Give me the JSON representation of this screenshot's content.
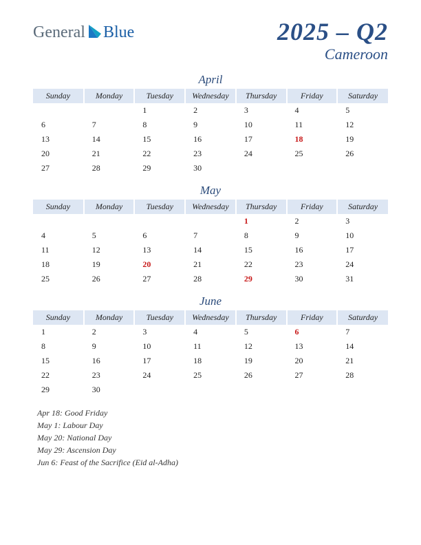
{
  "logo": {
    "part1": "General",
    "part2": "Blue"
  },
  "title": {
    "main": "2025 – Q2",
    "sub": "Cameroon"
  },
  "colors": {
    "header_bg": "#dde6f3",
    "accent": "#2a4f86",
    "holiday": "#c71818",
    "page_bg": "#ffffff"
  },
  "weekdays": [
    "Sunday",
    "Monday",
    "Tuesday",
    "Wednesday",
    "Thursday",
    "Friday",
    "Saturday"
  ],
  "months": [
    {
      "name": "April",
      "weeks": [
        [
          "",
          "",
          "1",
          "2",
          "3",
          "4",
          "5"
        ],
        [
          "6",
          "7",
          "8",
          "9",
          "10",
          "11",
          "12"
        ],
        [
          "13",
          "14",
          "15",
          "16",
          "17",
          "18",
          "19"
        ],
        [
          "20",
          "21",
          "22",
          "23",
          "24",
          "25",
          "26"
        ],
        [
          "27",
          "28",
          "29",
          "30",
          "",
          "",
          ""
        ]
      ],
      "holidays_cells": [
        [
          2,
          5
        ]
      ]
    },
    {
      "name": "May",
      "weeks": [
        [
          "",
          "",
          "",
          "",
          "1",
          "2",
          "3"
        ],
        [
          "4",
          "5",
          "6",
          "7",
          "8",
          "9",
          "10"
        ],
        [
          "11",
          "12",
          "13",
          "14",
          "15",
          "16",
          "17"
        ],
        [
          "18",
          "19",
          "20",
          "21",
          "22",
          "23",
          "24"
        ],
        [
          "25",
          "26",
          "27",
          "28",
          "29",
          "30",
          "31"
        ]
      ],
      "holidays_cells": [
        [
          0,
          4
        ],
        [
          3,
          2
        ],
        [
          4,
          4
        ]
      ]
    },
    {
      "name": "June",
      "weeks": [
        [
          "1",
          "2",
          "3",
          "4",
          "5",
          "6",
          "7"
        ],
        [
          "8",
          "9",
          "10",
          "11",
          "12",
          "13",
          "14"
        ],
        [
          "15",
          "16",
          "17",
          "18",
          "19",
          "20",
          "21"
        ],
        [
          "22",
          "23",
          "24",
          "25",
          "26",
          "27",
          "28"
        ],
        [
          "29",
          "30",
          "",
          "",
          "",
          "",
          ""
        ]
      ],
      "holidays_cells": [
        [
          0,
          5
        ]
      ]
    }
  ],
  "holiday_list": [
    "Apr 18: Good Friday",
    "May 1: Labour Day",
    "May 20: National Day",
    "May 29: Ascension Day",
    "Jun 6: Feast of the Sacrifice (Eid al-Adha)"
  ]
}
